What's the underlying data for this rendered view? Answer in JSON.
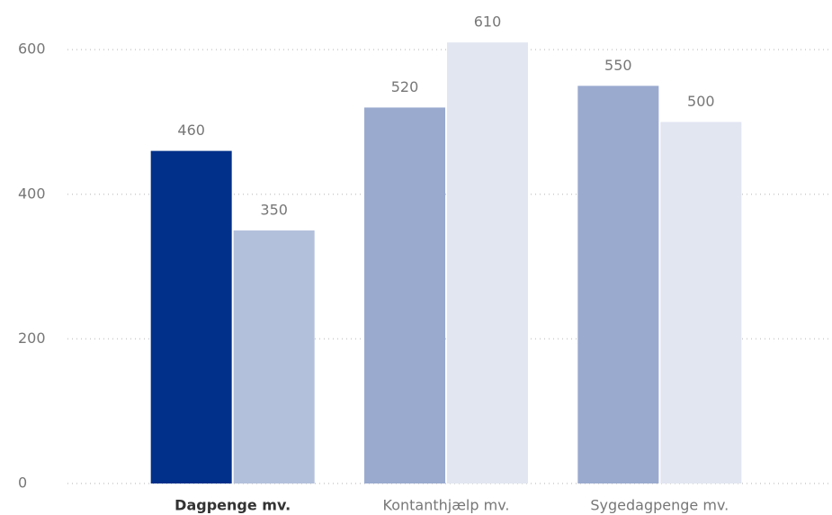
{
  "chart_data": {
    "type": "bar",
    "categories": [
      "Dagpenge mv.",
      "Kontanthjælp mv.",
      "Sygedagpenge mv."
    ],
    "series": [
      {
        "values": [
          460,
          520,
          550
        ],
        "colors": [
          "#00308a",
          "#9aaacf",
          "#9aaacf"
        ]
      },
      {
        "values": [
          350,
          610,
          500
        ],
        "colors": [
          "#b3c0dc",
          "#e1e6f1",
          "#e1e6f1"
        ]
      }
    ],
    "selected": 0,
    "ylim": [
      0,
      660
    ],
    "yticks": [
      0,
      200,
      400,
      600
    ],
    "grid": true
  }
}
